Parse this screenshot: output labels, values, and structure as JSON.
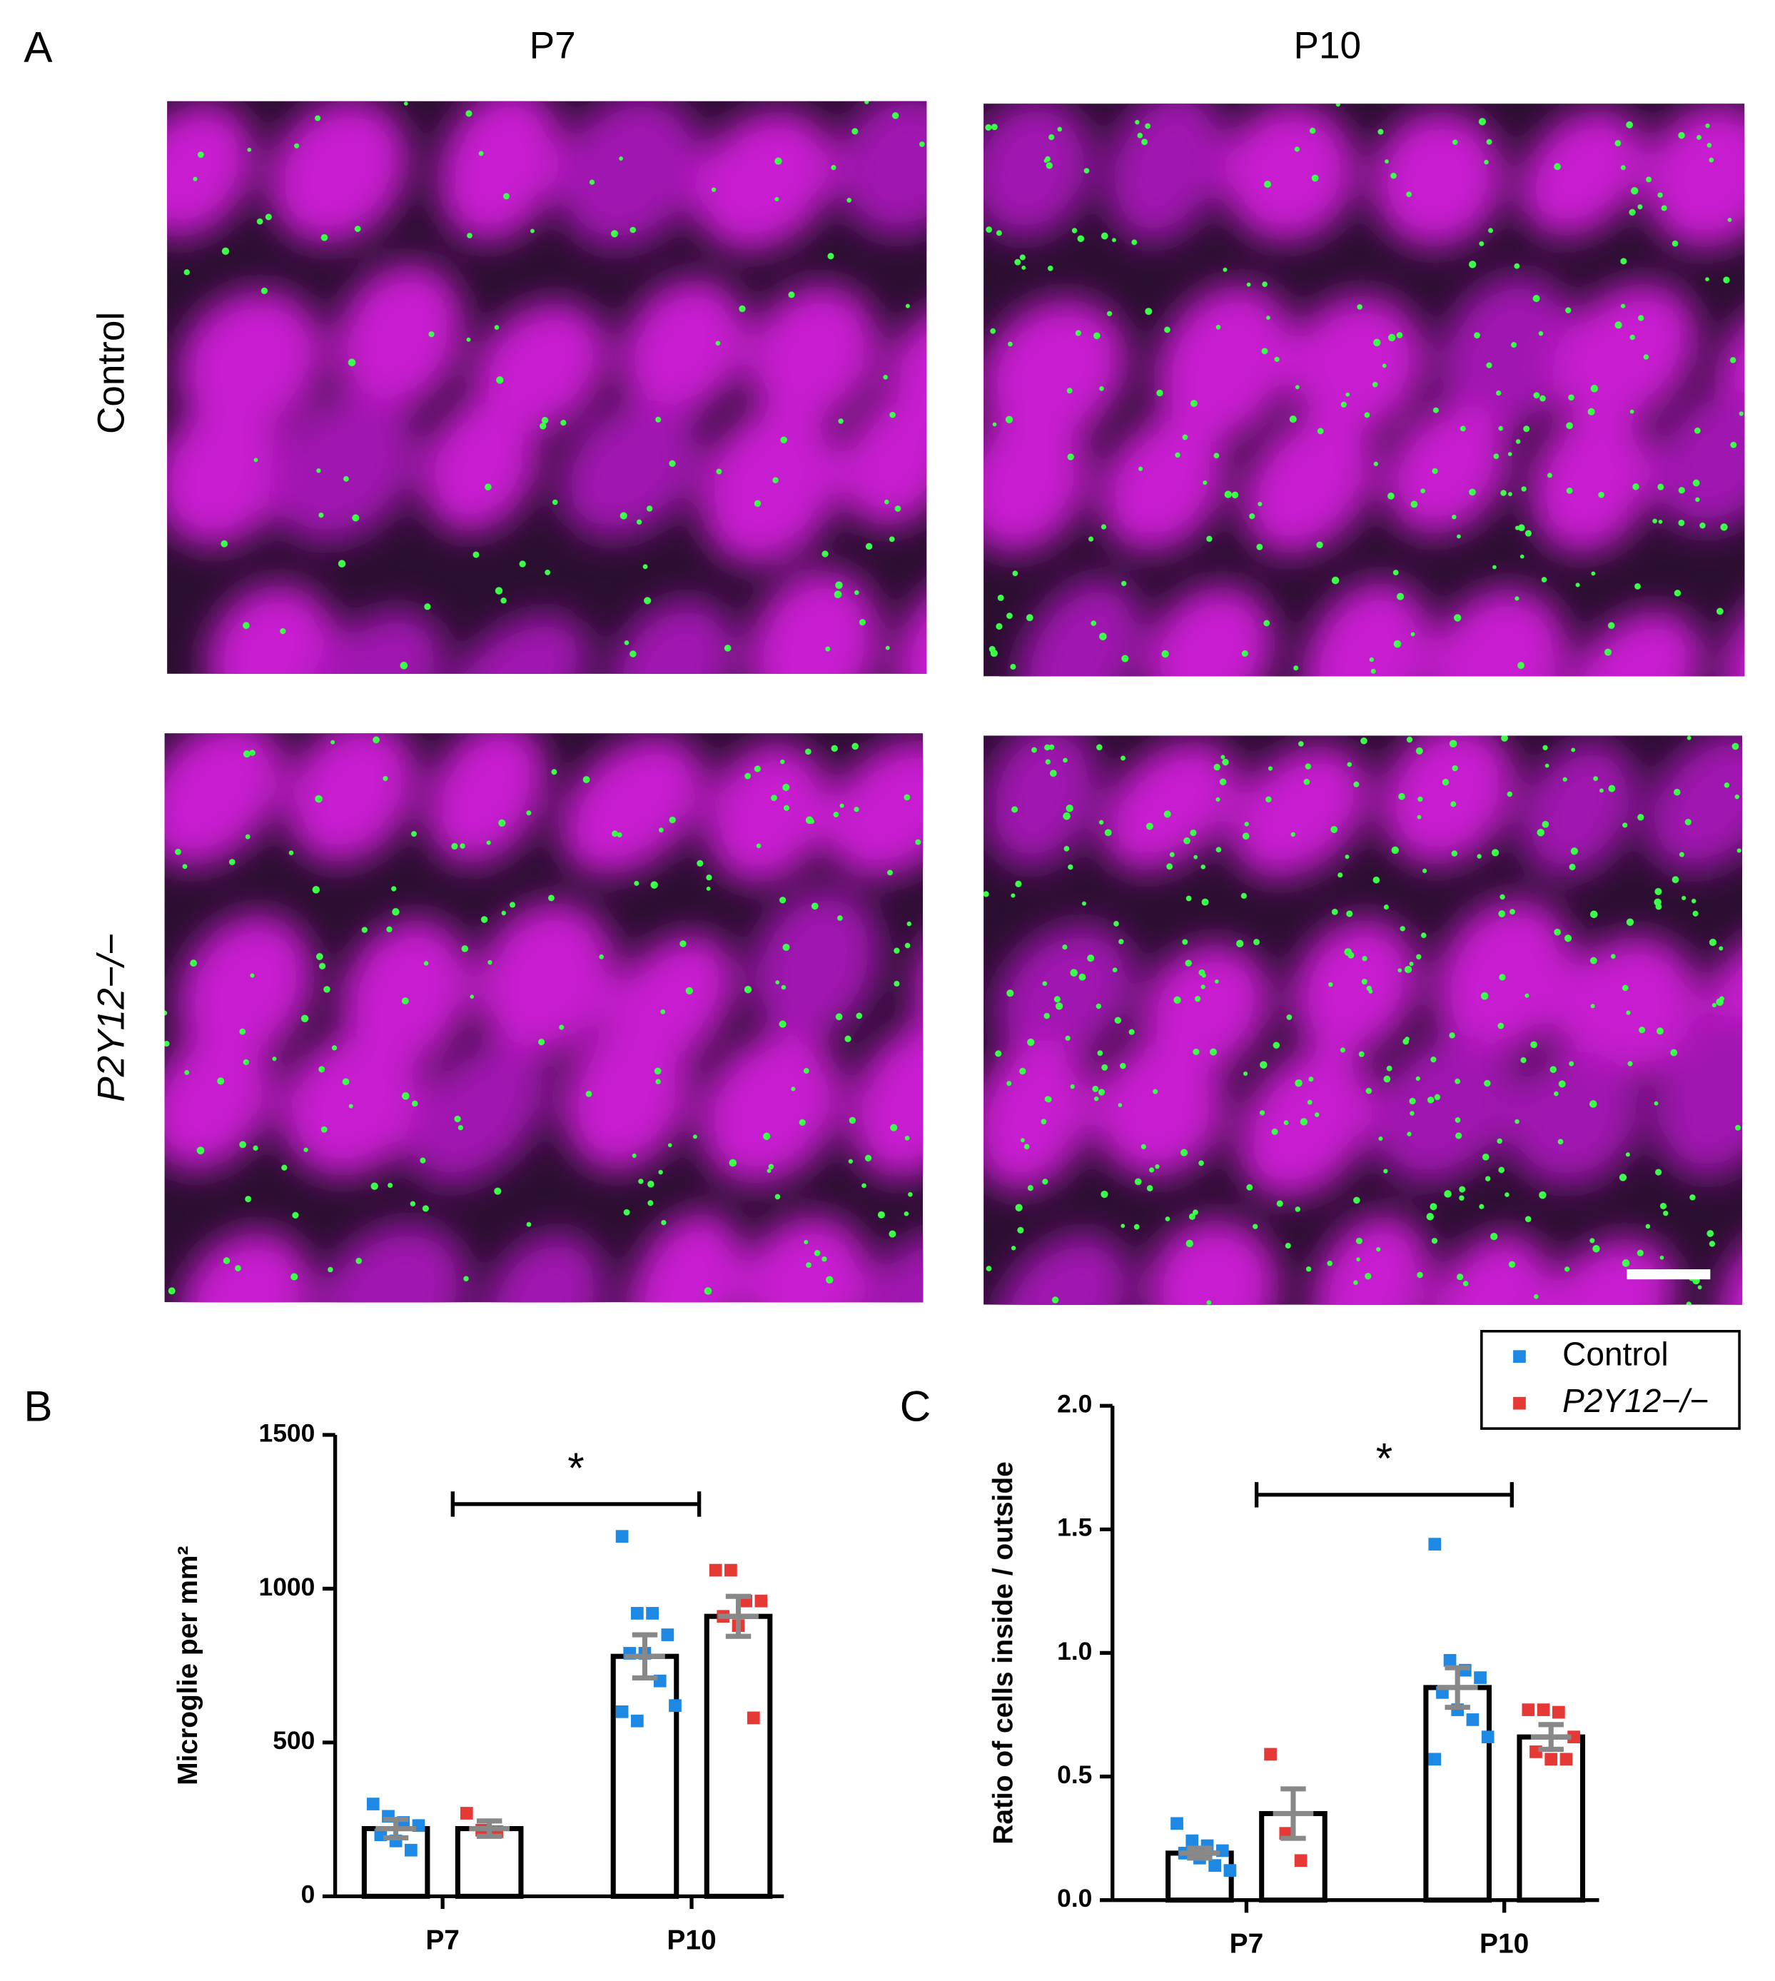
{
  "figure": {
    "panels": [
      "A",
      "B",
      "C"
    ],
    "columns": [
      "P7",
      "P10"
    ],
    "rows": [
      "Control",
      "P2Y12−/−"
    ]
  },
  "chart_data": [
    {
      "type": "bar",
      "ylabel": "Microglie per mm²",
      "categories": [
        "P7",
        "P10"
      ],
      "ylim": [
        0,
        1500
      ],
      "yticks": [
        0,
        500,
        1000,
        1500
      ],
      "series": [
        {
          "name": "Control",
          "color": "#1e88e5",
          "values": [
            220,
            780
          ],
          "errors": [
            30,
            70
          ],
          "points": [
            [
              300,
              260,
              240,
              230,
              200,
              180,
              150
            ],
            [
              1170,
              920,
              920,
              850,
              790,
              790,
              700,
              620,
              600,
              570
            ]
          ]
        },
        {
          "name": "P2Y12−/−",
          "color": "#e53935",
          "values": [
            220,
            910
          ],
          "errors": [
            25,
            65
          ],
          "points": [
            [
              270,
              215,
              210
            ],
            [
              1060,
              1060,
              960,
              960,
              910,
              880,
              580
            ]
          ]
        }
      ],
      "annotation": "*"
    },
    {
      "type": "bar",
      "ylabel": "Ratio of cells inside / outside",
      "categories": [
        "P7",
        "P10"
      ],
      "ylim": [
        0,
        2.0
      ],
      "yticks": [
        {
          "value": 0,
          "label": "0.0"
        },
        0.5,
        {
          "value": 1,
          "label": "1.0"
        },
        1.5,
        {
          "value": 2,
          "label": "2.0"
        }
      ],
      "series": [
        {
          "name": "Control",
          "color": "#1e88e5",
          "values": [
            0.19,
            0.86
          ],
          "errors": [
            0.02,
            0.08
          ],
          "points": [
            [
              0.31,
              0.24,
              0.22,
              0.2,
              0.19,
              0.17,
              0.14,
              0.12
            ],
            [
              1.44,
              0.97,
              0.93,
              0.9,
              0.84,
              0.77,
              0.73,
              0.66,
              0.57
            ]
          ]
        },
        {
          "name": "P2Y12−/−",
          "color": "#e53935",
          "values": [
            0.35,
            0.66
          ],
          "errors": [
            0.1,
            0.05
          ],
          "points": [
            [
              0.59,
              0.27,
              0.16
            ],
            [
              0.77,
              0.77,
              0.76,
              0.66,
              0.6,
              0.57,
              0.57
            ]
          ]
        }
      ],
      "annotation": "*",
      "legend": "upper right"
    }
  ]
}
